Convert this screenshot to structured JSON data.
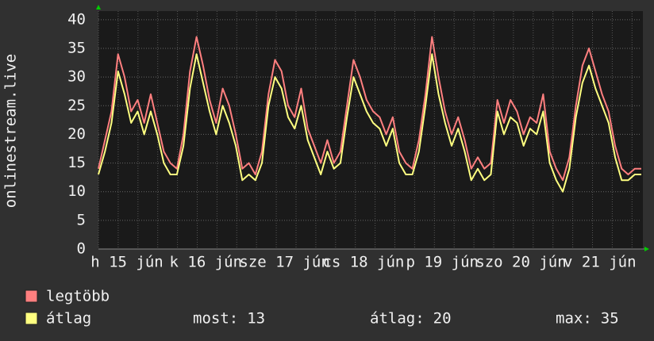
{
  "chart_data": {
    "type": "line",
    "y_label": "onlinestream.live",
    "x_labels": [
      "h 15 jún",
      "k 16 jún",
      "sze 17 jún",
      "cs 18 jún",
      "p 19 jún",
      "szo 20 jún",
      "v 21 jún"
    ],
    "ylim": [
      0,
      41.5
    ],
    "yticks": [
      0,
      5,
      10,
      15,
      20,
      25,
      30,
      35,
      40
    ],
    "grid": true,
    "series": [
      {
        "name": "legtöbb",
        "color": "#ff7f7f",
        "values": [
          14,
          19,
          24,
          34,
          30,
          24,
          26,
          22,
          27,
          22,
          17,
          15,
          14,
          20,
          31,
          37,
          32,
          26,
          22,
          28,
          25,
          20,
          14,
          15,
          13,
          17,
          27,
          33,
          31,
          25,
          23,
          28,
          21,
          18,
          15,
          19,
          15,
          17,
          25,
          33,
          30,
          26,
          24,
          23,
          20,
          23,
          17,
          15,
          14,
          19,
          27,
          37,
          30,
          24,
          20,
          23,
          19,
          14,
          16,
          14,
          15,
          26,
          22,
          26,
          24,
          20,
          23,
          22,
          27,
          17,
          14,
          12,
          16,
          25,
          32,
          35,
          31,
          27,
          24,
          18,
          14,
          13,
          14,
          14
        ]
      },
      {
        "name": "átlag",
        "color": "#ffff80",
        "values": [
          13,
          17,
          22,
          31,
          27,
          22,
          24,
          20,
          24,
          20,
          15,
          13,
          13,
          18,
          28,
          34,
          29,
          24,
          20,
          25,
          22,
          18,
          12,
          13,
          12,
          15,
          25,
          30,
          28,
          23,
          21,
          25,
          19,
          16,
          13,
          17,
          14,
          15,
          23,
          30,
          27,
          24,
          22,
          21,
          18,
          21,
          15,
          13,
          13,
          17,
          25,
          34,
          27,
          22,
          18,
          21,
          17,
          12,
          14,
          12,
          13,
          24,
          20,
          23,
          22,
          18,
          21,
          20,
          24,
          15,
          12,
          10,
          14,
          23,
          29,
          32,
          28,
          25,
          22,
          16,
          12,
          12,
          13,
          13
        ]
      }
    ],
    "stats": [
      {
        "label": "most:",
        "value": 13
      },
      {
        "label": "átlag:",
        "value": 20
      },
      {
        "label": "max:",
        "value": 35
      }
    ]
  }
}
